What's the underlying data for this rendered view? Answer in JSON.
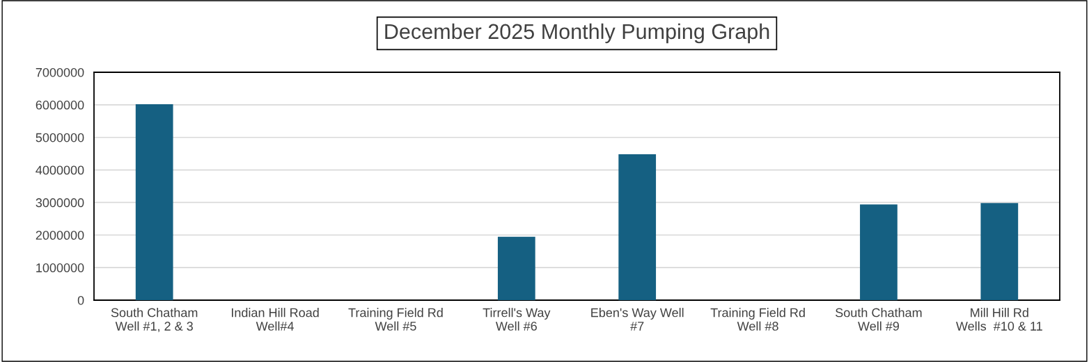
{
  "chart_data": {
    "type": "bar",
    "title": "December 2025 Monthly Pumping Graph",
    "categories": [
      "South Chatham\nWell #1, 2 & 3",
      "Indian Hill Road\nWell#4",
      "Training Field Rd\nWell #5",
      "Tirrell's Way\nWell #6",
      "Eben's Way Well\n#7",
      "Training Field Rd\nWell #8",
      "South Chatham\nWell #9",
      "Mill Hill Rd\nWells  #10 & 11"
    ],
    "values": [
      6020000,
      0,
      0,
      1950000,
      4480000,
      0,
      2940000,
      2980000
    ],
    "color": "#156082",
    "ylim": [
      0,
      7000000
    ],
    "yticks": [
      0,
      1000000,
      2000000,
      3000000,
      4000000,
      5000000,
      6000000,
      7000000
    ],
    "grid": "y",
    "legend": false
  }
}
